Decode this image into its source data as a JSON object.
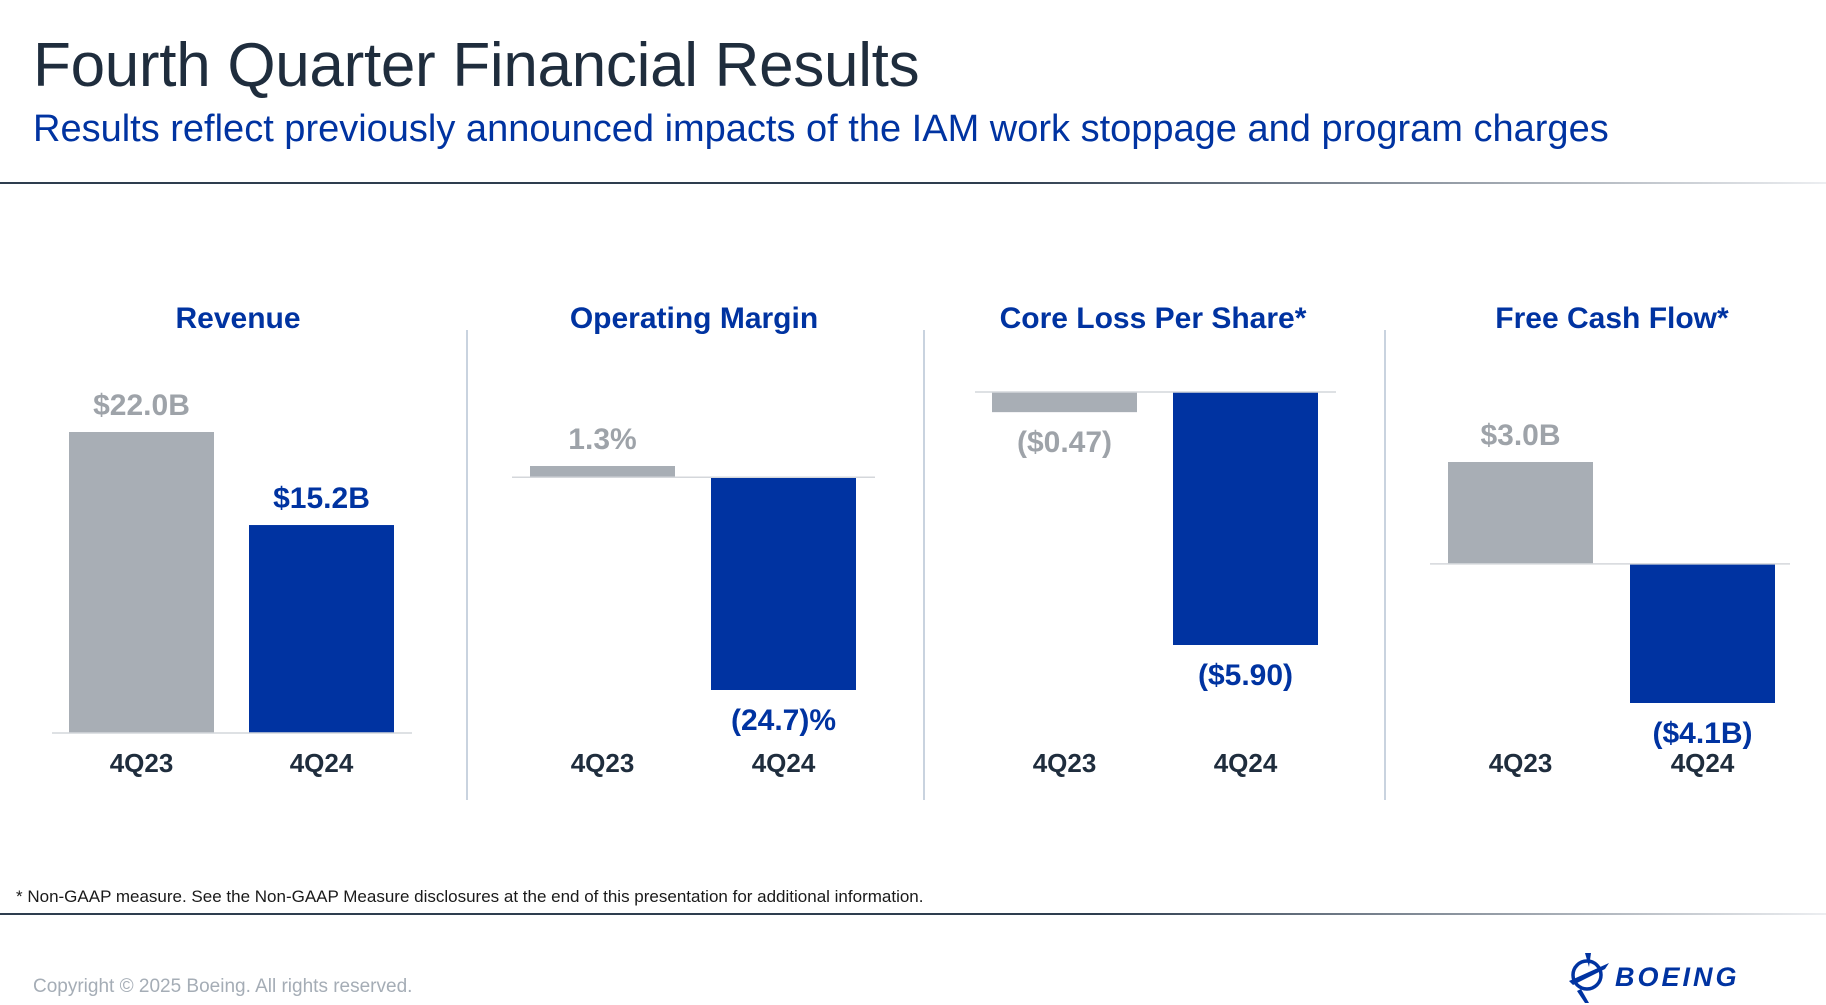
{
  "header": {
    "title": "Fourth Quarter Financial Results",
    "subtitle": "Results reflect previously announced impacts of the IAM work stoppage and program charges"
  },
  "footer": {
    "footnote": "* Non-GAAP measure. See the Non-GAAP Measure disclosures at the end of this presentation for additional information.",
    "copyright": "Copyright © 2025 Boeing. All rights reserved.",
    "logo_text": "BOEING"
  },
  "colors": {
    "prior": "#a8aeb5",
    "current": "#0033a1",
    "prior_label": "#9ea3a9",
    "title": "#1f2d3d",
    "axis": "#d4d7db",
    "divider": "#c9d3df"
  },
  "chart_data": [
    {
      "type": "bar",
      "title": "Revenue",
      "categories": [
        "4Q23",
        "4Q24"
      ],
      "values": [
        22.0,
        15.2
      ],
      "data_labels": [
        "$22.0B",
        "$15.2B"
      ],
      "unit": "$B",
      "ylim": [
        0,
        22.0
      ]
    },
    {
      "type": "bar",
      "title": "Operating Margin",
      "categories": [
        "4Q23",
        "4Q24"
      ],
      "values": [
        1.3,
        -24.7
      ],
      "data_labels": [
        "1.3%",
        "(24.7)%"
      ],
      "unit": "%",
      "ylim": [
        -24.7,
        1.3
      ]
    },
    {
      "type": "bar",
      "title": "Core Loss Per Share*",
      "categories": [
        "4Q23",
        "4Q24"
      ],
      "values": [
        -0.47,
        -5.9
      ],
      "data_labels": [
        "($0.47)",
        "($5.90)"
      ],
      "unit": "$",
      "ylim": [
        -5.9,
        0
      ]
    },
    {
      "type": "bar",
      "title": "Free Cash Flow*",
      "categories": [
        "4Q23",
        "4Q24"
      ],
      "values": [
        3.0,
        -4.1
      ],
      "data_labels": [
        "$3.0B",
        "($4.1B)"
      ],
      "unit": "$B",
      "ylim": [
        -4.1,
        3.0
      ]
    }
  ]
}
